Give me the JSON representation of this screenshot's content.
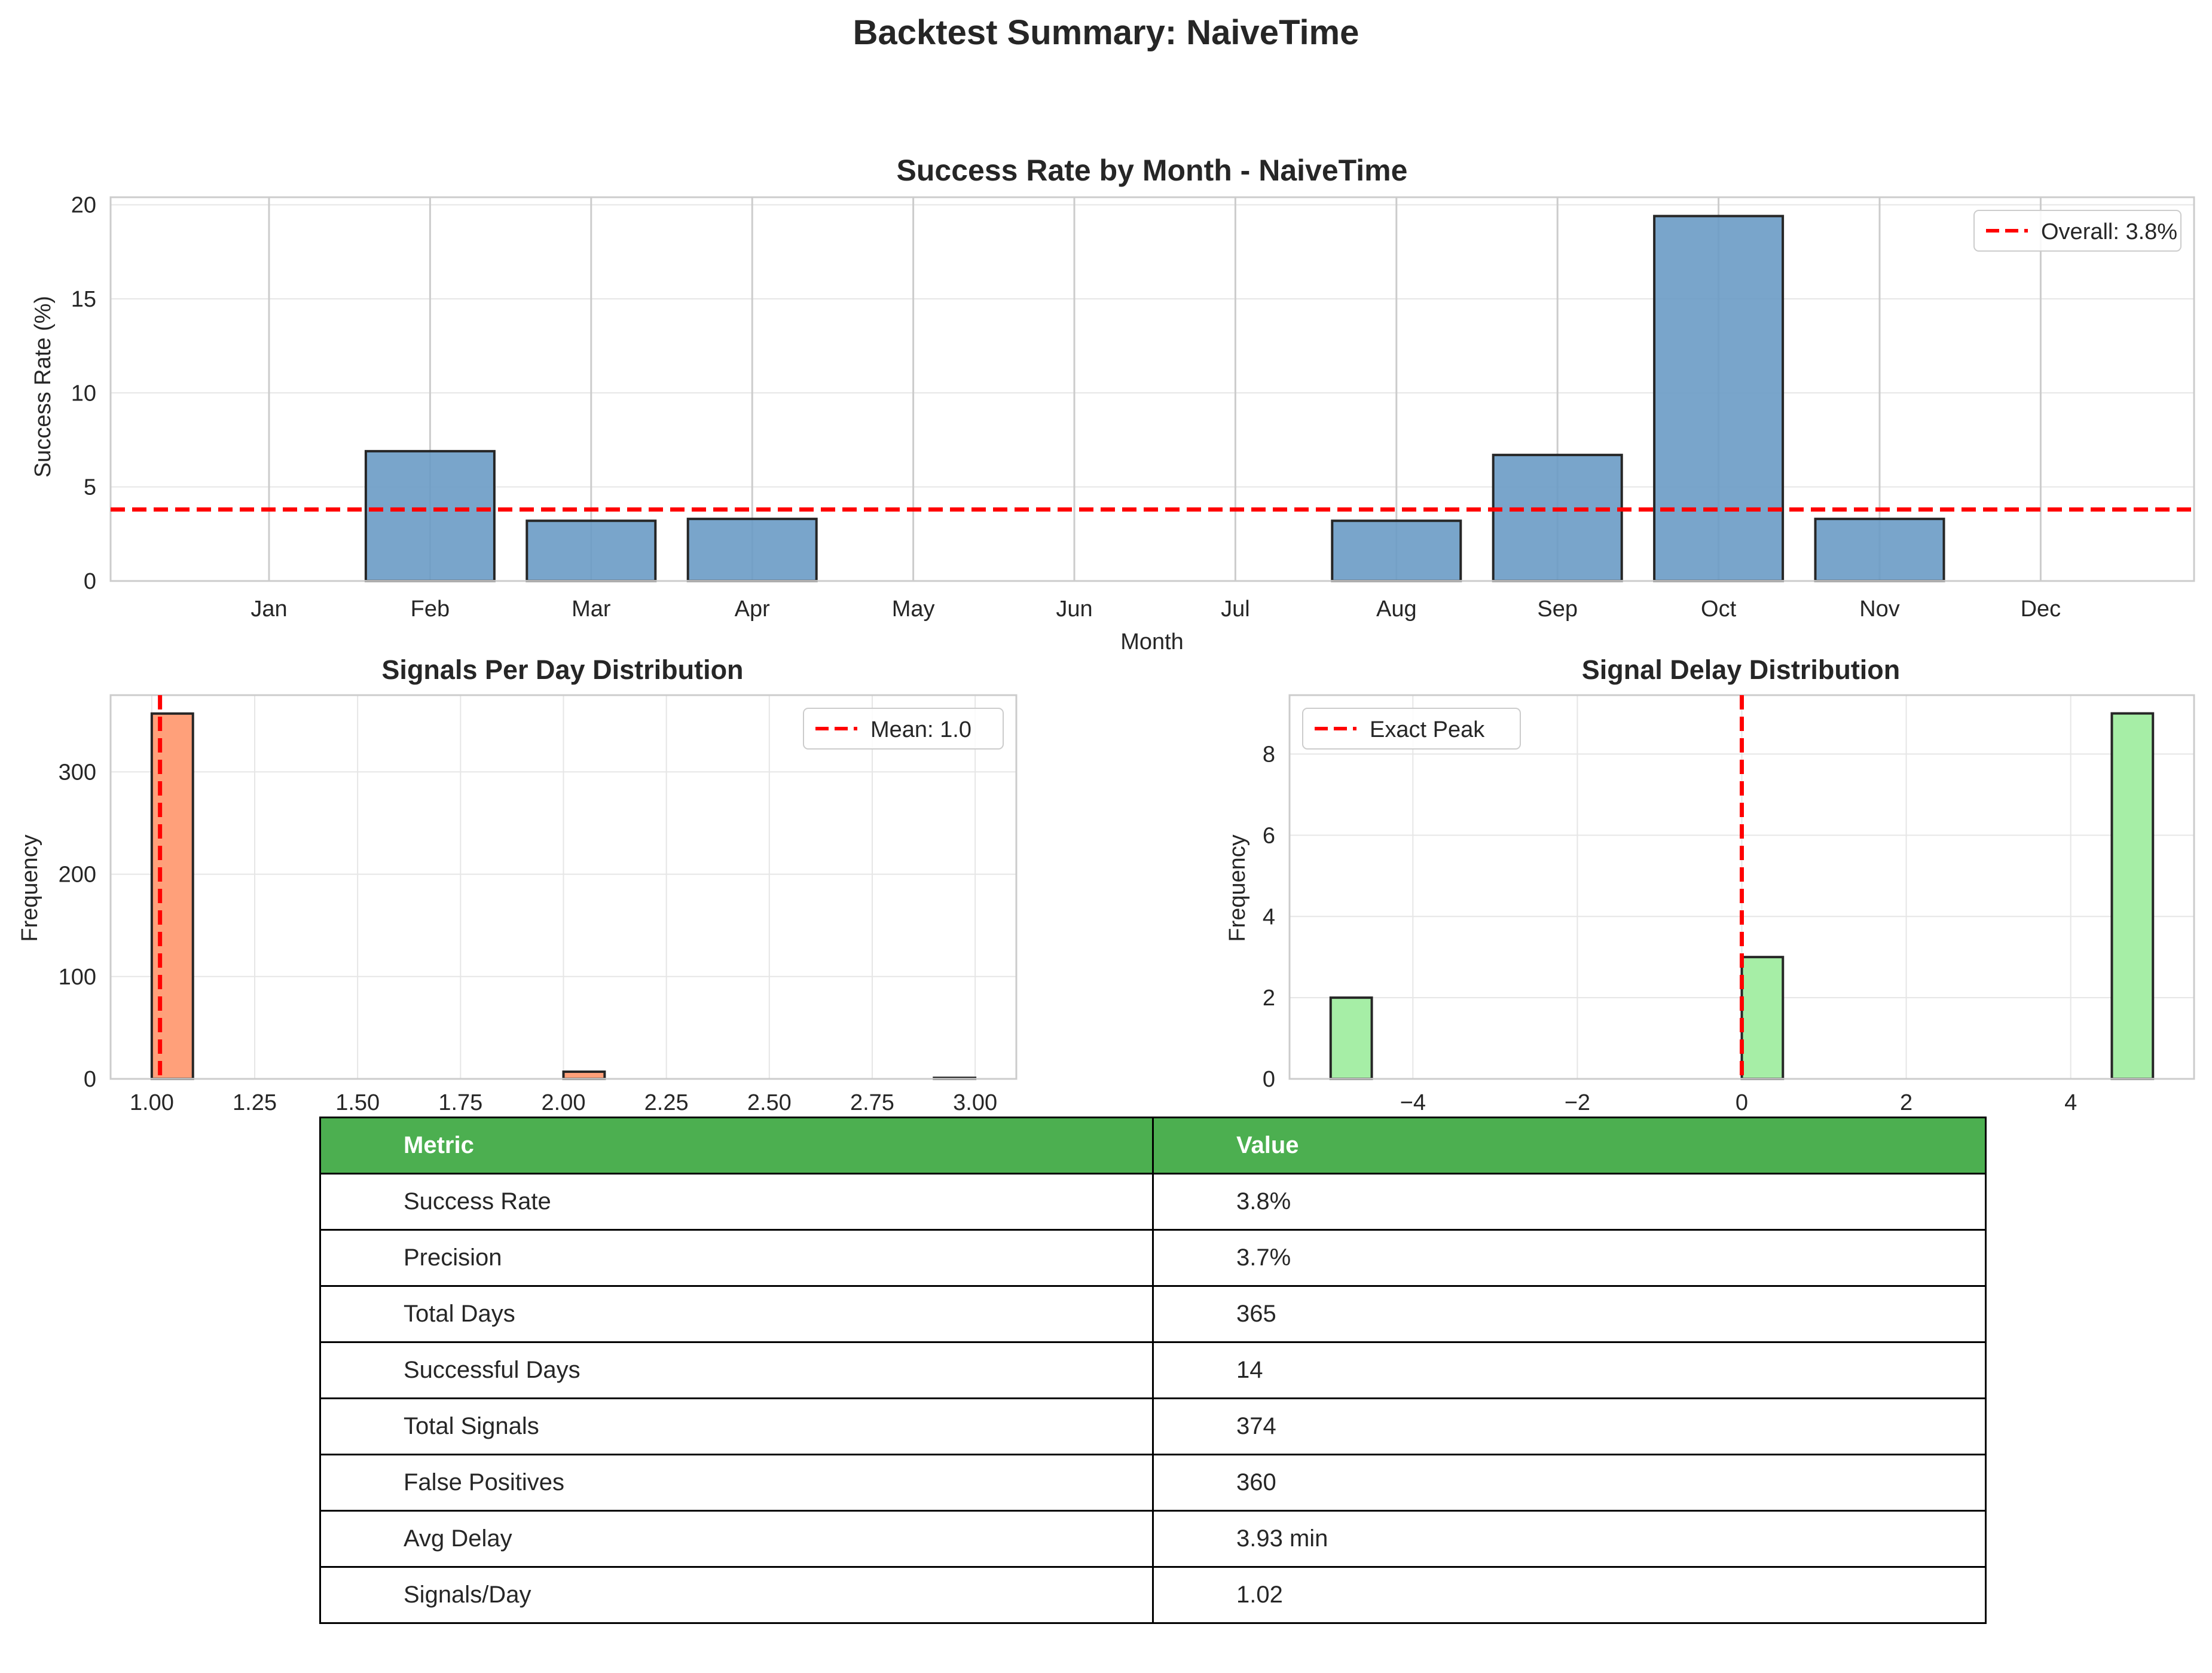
{
  "figure_title": "Backtest Summary: NaiveTime",
  "colors": {
    "monthly_bar": "#6a9bc5",
    "signals_bar": "#ffa07a",
    "delay_bar": "#a6eea6",
    "reference_line": "#ff0000",
    "table_header": "#4caf50"
  },
  "chart_data": [
    {
      "id": "monthly",
      "type": "bar",
      "title": "Success Rate by Month - NaiveTime",
      "xlabel": "Month",
      "ylabel": "Success Rate (%)",
      "categories": [
        "Jan",
        "Feb",
        "Mar",
        "Apr",
        "May",
        "Jun",
        "Jul",
        "Aug",
        "Sep",
        "Oct",
        "Nov",
        "Dec"
      ],
      "values": [
        0,
        6.9,
        3.2,
        3.3,
        0,
        0,
        0,
        3.2,
        6.7,
        19.4,
        3.3,
        0
      ],
      "ylim": [
        0,
        20.4
      ],
      "yticks": [
        0,
        5,
        10,
        15,
        20
      ],
      "grid": true,
      "reference_line": {
        "y": 3.8,
        "label": "Overall: 3.8%",
        "style": "dashed"
      },
      "legend_position": "top-right"
    },
    {
      "id": "signals",
      "type": "bar",
      "title": "Signals Per Day Distribution",
      "xlabel": "",
      "ylabel": "Frequency",
      "bins": [
        {
          "x0": 1.0,
          "x1": 1.1,
          "count": 357
        },
        {
          "x0": 2.0,
          "x1": 2.1,
          "count": 7
        },
        {
          "x0": 2.9,
          "x1": 3.0,
          "count": 1
        }
      ],
      "xlim": [
        0.9,
        3.1
      ],
      "ylim": [
        0,
        375
      ],
      "xticks": [
        "1.00",
        "1.25",
        "1.50",
        "1.75",
        "2.00",
        "2.25",
        "2.50",
        "2.75",
        "3.00"
      ],
      "yticks": [
        0,
        100,
        200,
        300
      ],
      "grid": true,
      "reference_line": {
        "x": 1.02,
        "label": "Mean: 1.0",
        "style": "dashed"
      },
      "legend_position": "top-right"
    },
    {
      "id": "delay",
      "type": "bar",
      "title": "Signal Delay Distribution",
      "xlabel": "",
      "ylabel": "Frequency",
      "bins": [
        {
          "x0": -5.0,
          "x1": -4.5,
          "count": 2
        },
        {
          "x0": 0.0,
          "x1": 0.5,
          "count": 3
        },
        {
          "x0": 4.5,
          "x1": 5.0,
          "count": 9
        }
      ],
      "xlim": [
        -5.5,
        5.5
      ],
      "ylim": [
        0,
        9.45
      ],
      "xticks": [
        "−4",
        "−2",
        "0",
        "2",
        "4"
      ],
      "yticks": [
        0,
        2,
        4,
        6,
        8
      ],
      "grid": true,
      "reference_line": {
        "x": 0,
        "label": "Exact Peak",
        "style": "dashed"
      },
      "legend_position": "top-left"
    }
  ],
  "table": {
    "headers": [
      "Metric",
      "Value"
    ],
    "rows": [
      [
        "Success Rate",
        "3.8%"
      ],
      [
        "Precision",
        "3.7%"
      ],
      [
        "Total Days",
        "365"
      ],
      [
        "Successful Days",
        "14"
      ],
      [
        "Total Signals",
        "374"
      ],
      [
        "False Positives",
        "360"
      ],
      [
        "Avg Delay",
        "3.93 min"
      ],
      [
        "Signals/Day",
        "1.02"
      ]
    ]
  }
}
